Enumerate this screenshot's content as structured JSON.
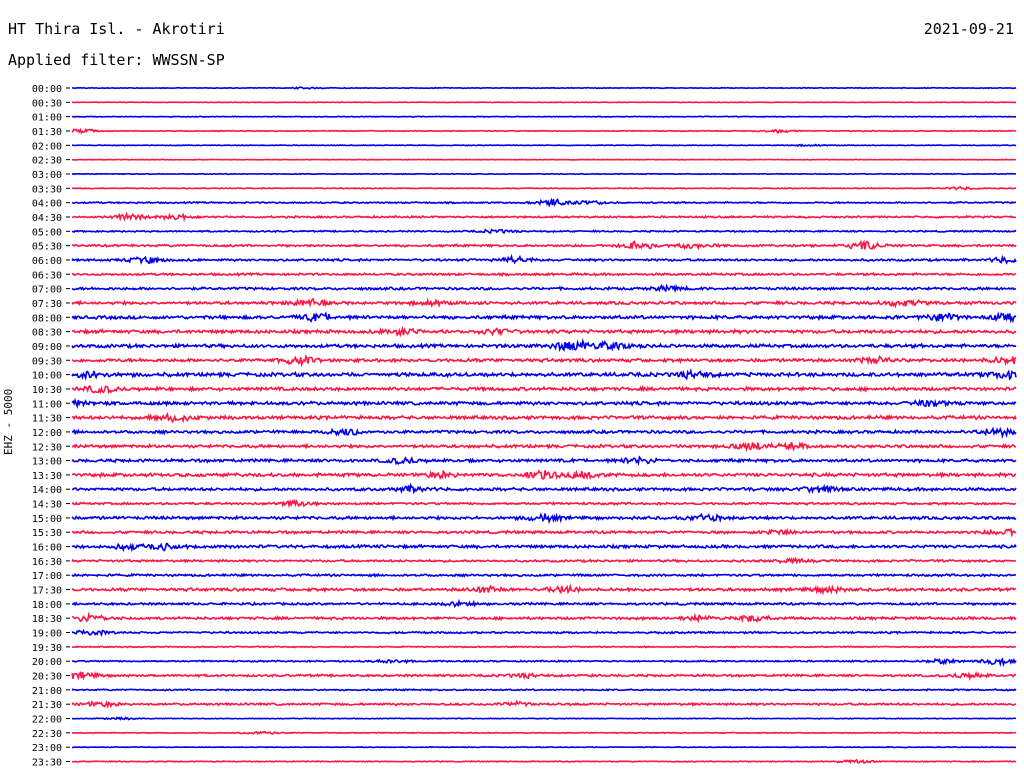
{
  "header": {
    "station": "HT Thira Isl. - Akrotiri",
    "date": "2021-09-21",
    "filter": "Applied filter: WWSSN-SP"
  },
  "channel_label": "EHZ - 5000",
  "colors": {
    "odd_trace": "#0000ee",
    "even_trace": "#ff1744"
  },
  "chart_data": {
    "type": "line",
    "title": "HT Thira Isl. - Akrotiri",
    "ylabel": "EHZ - 5000",
    "rows": [
      {
        "label": "00:00",
        "color": "blue",
        "noise": 0.4,
        "events": [
          [
            0.25,
            0.8
          ]
        ]
      },
      {
        "label": "00:30",
        "color": "red",
        "noise": 0.3,
        "events": []
      },
      {
        "label": "01:00",
        "color": "blue",
        "noise": 0.4,
        "events": []
      },
      {
        "label": "01:30",
        "color": "red",
        "noise": 0.5,
        "events": [
          [
            0.01,
            1.8
          ],
          [
            0.75,
            1.6
          ]
        ]
      },
      {
        "label": "02:00",
        "color": "blue",
        "noise": 0.4,
        "events": [
          [
            0.78,
            0.7
          ]
        ]
      },
      {
        "label": "02:30",
        "color": "red",
        "noise": 0.3,
        "events": []
      },
      {
        "label": "03:00",
        "color": "blue",
        "noise": 0.4,
        "events": []
      },
      {
        "label": "03:30",
        "color": "red",
        "noise": 0.5,
        "events": [
          [
            0.94,
            1.4
          ]
        ]
      },
      {
        "label": "04:00",
        "color": "blue",
        "noise": 0.8,
        "events": [
          [
            0.51,
            3.5
          ],
          [
            0.55,
            1.5
          ]
        ]
      },
      {
        "label": "04:30",
        "color": "red",
        "noise": 1.0,
        "events": [
          [
            0.06,
            2.6
          ],
          [
            0.11,
            2.4
          ]
        ]
      },
      {
        "label": "05:00",
        "color": "blue",
        "noise": 0.8,
        "events": [
          [
            0.45,
            1.5
          ]
        ]
      },
      {
        "label": "05:30",
        "color": "red",
        "noise": 1.2,
        "events": [
          [
            0.6,
            3.5
          ],
          [
            0.84,
            4.2
          ],
          [
            0.66,
            2.5
          ]
        ]
      },
      {
        "label": "06:00",
        "color": "blue",
        "noise": 1.2,
        "events": [
          [
            0.08,
            3.0
          ],
          [
            0.47,
            3.0
          ],
          [
            0.99,
            2.5
          ]
        ]
      },
      {
        "label": "06:30",
        "color": "red",
        "noise": 1.2,
        "events": []
      },
      {
        "label": "07:00",
        "color": "blue",
        "noise": 1.4,
        "events": [
          [
            0.63,
            2.0
          ]
        ]
      },
      {
        "label": "07:30",
        "color": "red",
        "noise": 1.6,
        "events": [
          [
            0.25,
            3.2
          ],
          [
            0.88,
            3.0
          ],
          [
            0.38,
            2.0
          ]
        ]
      },
      {
        "label": "08:00",
        "color": "blue",
        "noise": 1.8,
        "events": [
          [
            0.26,
            3.2
          ],
          [
            0.92,
            3.6
          ],
          [
            0.99,
            2.8
          ]
        ]
      },
      {
        "label": "08:30",
        "color": "red",
        "noise": 1.8,
        "events": [
          [
            0.35,
            3.0
          ],
          [
            0.45,
            2.5
          ]
        ]
      },
      {
        "label": "09:00",
        "color": "blue",
        "noise": 1.8,
        "events": [
          [
            0.53,
            5.0
          ],
          [
            0.57,
            3.0
          ]
        ]
      },
      {
        "label": "09:30",
        "color": "red",
        "noise": 1.8,
        "events": [
          [
            0.24,
            3.5
          ],
          [
            0.99,
            3.0
          ],
          [
            0.85,
            2.5
          ]
        ]
      },
      {
        "label": "10:00",
        "color": "blue",
        "noise": 2.0,
        "events": [
          [
            0.02,
            3.0
          ],
          [
            0.66,
            3.0
          ],
          [
            0.99,
            3.2
          ]
        ]
      },
      {
        "label": "10:30",
        "color": "red",
        "noise": 1.8,
        "events": [
          [
            0.03,
            3.2
          ]
        ]
      },
      {
        "label": "11:00",
        "color": "blue",
        "noise": 1.8,
        "events": [
          [
            0.0,
            2.5
          ],
          [
            0.91,
            2.5
          ]
        ]
      },
      {
        "label": "11:30",
        "color": "red",
        "noise": 1.8,
        "events": [
          [
            0.11,
            3.5
          ]
        ]
      },
      {
        "label": "12:00",
        "color": "blue",
        "noise": 1.6,
        "events": [
          [
            0.29,
            3.5
          ],
          [
            0.98,
            3.5
          ]
        ]
      },
      {
        "label": "12:30",
        "color": "red",
        "noise": 1.6,
        "events": [
          [
            0.72,
            3.0
          ],
          [
            0.76,
            3.5
          ]
        ]
      },
      {
        "label": "13:00",
        "color": "blue",
        "noise": 1.6,
        "events": [
          [
            0.35,
            2.5
          ],
          [
            0.6,
            3.0
          ]
        ]
      },
      {
        "label": "13:30",
        "color": "red",
        "noise": 1.8,
        "events": [
          [
            0.5,
            3.5
          ],
          [
            0.54,
            2.5
          ],
          [
            0.39,
            2.5
          ]
        ]
      },
      {
        "label": "14:00",
        "color": "blue",
        "noise": 1.6,
        "events": [
          [
            0.36,
            3.0
          ],
          [
            0.79,
            3.0
          ]
        ]
      },
      {
        "label": "14:30",
        "color": "red",
        "noise": 1.2,
        "events": [
          [
            0.24,
            2.5
          ]
        ]
      },
      {
        "label": "15:00",
        "color": "blue",
        "noise": 1.6,
        "events": [
          [
            0.5,
            3.0
          ],
          [
            0.67,
            3.0
          ]
        ]
      },
      {
        "label": "15:30",
        "color": "red",
        "noise": 1.4,
        "events": [
          [
            0.99,
            3.2
          ],
          [
            0.75,
            2.0
          ]
        ]
      },
      {
        "label": "16:00",
        "color": "blue",
        "noise": 1.6,
        "events": [
          [
            0.06,
            3.2
          ],
          [
            0.1,
            3.2
          ]
        ]
      },
      {
        "label": "16:30",
        "color": "red",
        "noise": 1.2,
        "events": [
          [
            0.76,
            1.8
          ]
        ]
      },
      {
        "label": "17:00",
        "color": "blue",
        "noise": 1.2,
        "events": []
      },
      {
        "label": "17:30",
        "color": "red",
        "noise": 1.6,
        "events": [
          [
            0.44,
            3.0
          ],
          [
            0.52,
            2.8
          ],
          [
            0.8,
            2.5
          ]
        ]
      },
      {
        "label": "18:00",
        "color": "blue",
        "noise": 1.2,
        "events": [
          [
            0.41,
            1.8
          ]
        ]
      },
      {
        "label": "18:30",
        "color": "red",
        "noise": 1.4,
        "events": [
          [
            0.02,
            4.0
          ],
          [
            0.72,
            3.0
          ],
          [
            0.66,
            2.0
          ]
        ]
      },
      {
        "label": "19:00",
        "color": "blue",
        "noise": 1.0,
        "events": [
          [
            0.02,
            2.5
          ]
        ]
      },
      {
        "label": "19:30",
        "color": "red",
        "noise": 0.6,
        "events": []
      },
      {
        "label": "20:00",
        "color": "blue",
        "noise": 0.8,
        "events": [
          [
            0.34,
            1.8
          ],
          [
            0.98,
            3.5
          ],
          [
            0.92,
            2.0
          ]
        ]
      },
      {
        "label": "20:30",
        "color": "red",
        "noise": 1.2,
        "events": [
          [
            0.01,
            3.0
          ],
          [
            0.95,
            2.5
          ],
          [
            0.48,
            1.6
          ]
        ]
      },
      {
        "label": "21:00",
        "color": "blue",
        "noise": 0.8,
        "events": []
      },
      {
        "label": "21:30",
        "color": "red",
        "noise": 1.2,
        "events": [
          [
            0.03,
            2.2
          ],
          [
            0.47,
            2.0
          ]
        ]
      },
      {
        "label": "22:00",
        "color": "blue",
        "noise": 0.4,
        "events": [
          [
            0.05,
            1.0
          ]
        ]
      },
      {
        "label": "22:30",
        "color": "red",
        "noise": 0.5,
        "events": [
          [
            0.2,
            1.6
          ]
        ]
      },
      {
        "label": "23:00",
        "color": "blue",
        "noise": 0.4,
        "events": []
      },
      {
        "label": "23:30",
        "color": "red",
        "noise": 0.5,
        "events": [
          [
            0.83,
            1.6
          ]
        ]
      }
    ]
  }
}
